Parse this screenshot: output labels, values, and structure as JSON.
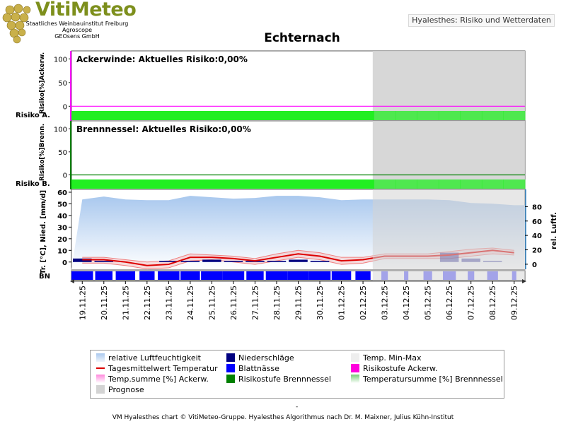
{
  "brand": {
    "name": "VitiMeteo",
    "lines": [
      "Staatliches Weinbauinstitut Freiburg",
      "Agroscope",
      "GEOsens GmbH"
    ],
    "color": "#7d8f1c"
  },
  "app_label": "Hyalesthes: Risiko und Wetterdaten",
  "chart_data": {
    "type": "combined",
    "title": "Echternach",
    "dates": [
      "19.11.25",
      "20.11.25",
      "21.11.25",
      "22.11.25",
      "23.11.25",
      "24.11.25",
      "25.11.25",
      "26.11.25",
      "27.11.25",
      "28.11.25",
      "29.11.25",
      "30.11.25",
      "01.12.25",
      "02.12.25",
      "03.12.25",
      "04.12.25",
      "05.12.25",
      "06.12.25",
      "07.12.25",
      "08.12.25",
      "09.12.25"
    ],
    "forecast_start": "03.12.25",
    "panels": [
      {
        "id": "ackerwinde",
        "ylabel": "Risiko[%]Ackerw.",
        "row_label": "Risiko A.",
        "header": "Ackerwinde: Aktuelles Risiko:0,00%",
        "yticks": [
          0,
          50,
          100
        ],
        "ylim": [
          -10,
          105
        ],
        "risk_values": [
          0,
          0,
          0,
          0,
          0,
          0,
          0,
          0,
          0,
          0,
          0,
          0,
          0,
          0,
          0,
          0,
          0,
          0,
          0,
          0,
          0
        ],
        "risk_band_color": "#22ee22",
        "axis_color": "#ff00ff"
      },
      {
        "id": "brennnessel",
        "ylabel": "Risiko[%]Brenn.",
        "row_label": "Risiko B.",
        "header": "Brennnessel: Aktuelles Risiko:0,00%",
        "yticks": [
          0,
          50,
          100
        ],
        "ylim": [
          -10,
          105
        ],
        "risk_values": [
          0,
          0,
          0,
          0,
          0,
          0,
          0,
          0,
          0,
          0,
          0,
          0,
          0,
          0,
          0,
          0,
          0,
          0,
          0,
          0,
          0
        ],
        "risk_band_color": "#22ee22",
        "axis_color": "#008000"
      }
    ],
    "weather": {
      "ylabel_left": "Tr. [°C], Nied. [mm/d]",
      "ylabel_right": "rel. Luftf.",
      "row_label": "BN",
      "left_ticks": [
        0,
        10,
        20,
        30,
        40,
        50,
        60
      ],
      "left_lim": [
        -5,
        60
      ],
      "right_ticks": [
        0,
        20,
        40,
        60,
        80
      ],
      "right_lim": [
        -5,
        100
      ],
      "humidity": [
        90,
        94,
        90,
        89,
        89,
        95,
        93,
        91,
        92,
        95,
        95,
        93,
        89,
        90,
        90,
        90,
        90,
        89,
        85,
        84,
        82
      ],
      "temp_mean": [
        2,
        2,
        0,
        -3,
        -2,
        4,
        4,
        3,
        1,
        4,
        7,
        5,
        1,
        2,
        5,
        5,
        5,
        6,
        8,
        10,
        8
      ],
      "temp_min": [
        -1,
        -1,
        -3,
        -6,
        -5,
        1,
        2,
        0,
        -2,
        1,
        4,
        2,
        -2,
        -1,
        3,
        3,
        3,
        3,
        5,
        7,
        6
      ],
      "temp_max": [
        4,
        4,
        2,
        0,
        1,
        7,
        6,
        5,
        3,
        7,
        10,
        8,
        4,
        4,
        7,
        7,
        7,
        9,
        11,
        12,
        10
      ],
      "precipitation": [
        3,
        1,
        0,
        0,
        1,
        1,
        2,
        1,
        1,
        1,
        2,
        1,
        0,
        0,
        0,
        0,
        0,
        8,
        3,
        1,
        0
      ],
      "leaf_wetness": [
        1,
        0.8,
        0.9,
        0.7,
        1,
        0.9,
        1,
        1,
        0.8,
        1,
        1,
        1,
        0.9,
        0.7,
        0.3,
        0.2,
        0.4,
        0.6,
        0.3,
        0.5,
        0.2
      ]
    },
    "colors": {
      "humidity": "#a9c8ee",
      "temp_mean": "#dd0000",
      "temp_minmax": "#f4b4b4",
      "precip": "#000080",
      "leaf_wetness": "#0000ff",
      "forecast": "#d3d3d3"
    },
    "legend": [
      {
        "label": "relative Luftfeuchtigkeit",
        "swatch": "gradient-blue"
      },
      {
        "label": "Niederschläge",
        "swatch": "#000080"
      },
      {
        "label": "Temp. Min-Max",
        "swatch": "#eeeeee"
      },
      {
        "label": "Tagesmittelwert Temperatur",
        "swatch": "line-red"
      },
      {
        "label": "Blattnässe",
        "swatch": "#0000ff"
      },
      {
        "label": "Risikostufe Ackerw.",
        "swatch": "#ff00dd"
      },
      {
        "label": "Temp.summe [%] Ackerw.",
        "swatch": "gradient-pink"
      },
      {
        "label": "Risikostufe Brennnessel",
        "swatch": "#008000"
      },
      {
        "label": "Temperatursumme [%] Brennnessel",
        "swatch": "gradient-green"
      },
      {
        "label": "Prognose",
        "swatch": "#d3d3d3"
      }
    ]
  },
  "footer_dash": "-",
  "footer": "VM Hyalesthes chart © VitiMeteo-Gruppe. Hyalesthes Algorithmus nach Dr. M. Maixner, Julius Kühn-Institut"
}
